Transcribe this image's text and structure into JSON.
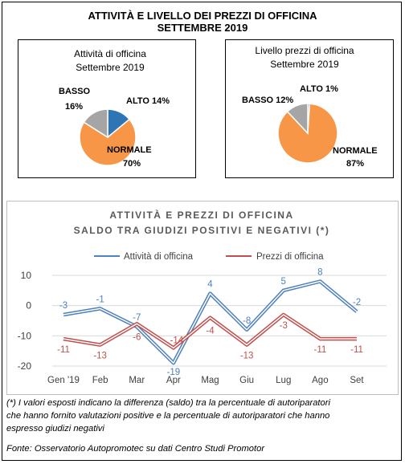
{
  "header": {
    "title_line1": "ATTIVITÀ E LIVELLO DEI PREZZI DI OFFICINA",
    "title_line2": "SETTEMBRE 2019"
  },
  "chart_data": [
    {
      "type": "pie",
      "title_line1": "Attività di officina",
      "title_line2": "Settembre 2019",
      "slices": [
        {
          "name": "ALTO",
          "label": "ALTO 14%",
          "value": 14,
          "color": "#2e75b6"
        },
        {
          "name": "NORMALE",
          "label_line1": "NORMALE",
          "label_line2": "70%",
          "value": 70,
          "color": "#f79646"
        },
        {
          "name": "BASSO",
          "label_line1": "BASSO",
          "label_line2": "16%",
          "value": 16,
          "color": "#a5a5a5"
        }
      ]
    },
    {
      "type": "pie",
      "title_line1": "Livello prezzi di officina",
      "title_line2": "Settembre 2019",
      "slices": [
        {
          "name": "ALTO",
          "label": "ALTO 1%",
          "value": 1,
          "color": "#2e75b6"
        },
        {
          "name": "NORMALE",
          "label_line1": "NORMALE",
          "label_line2": "87%",
          "value": 87,
          "color": "#f79646"
        },
        {
          "name": "BASSO",
          "label": "BASSO 12%",
          "value": 12,
          "color": "#a5a5a5"
        }
      ]
    },
    {
      "type": "line",
      "title_line1": "ATTIVITÀ E PREZZI DI OFFICINA",
      "title_line2": "SALDO TRA GIUDIZI POSITIVI E NEGATIVI (*)",
      "categories": [
        "Gen '19",
        "Feb",
        "Mar",
        "Apr",
        "Mag",
        "Giu",
        "Lug",
        "Ago",
        "Set"
      ],
      "ylim": [
        -20,
        10
      ],
      "yticks": [
        10,
        0,
        -10,
        -20
      ],
      "grid": true,
      "legend": "top",
      "series": [
        {
          "name": "Attività di officina",
          "color": "#4f81bd",
          "values": [
            -3,
            -1,
            -7,
            -19,
            4,
            -8,
            5,
            8,
            -2
          ]
        },
        {
          "name": "Prezzi di officina",
          "color": "#c0504d",
          "values": [
            -11,
            -13,
            -6,
            -14,
            -4,
            -13,
            -3,
            -11,
            -11
          ]
        }
      ]
    }
  ],
  "footnote": {
    "line1": "(*) I valori esposti indicano la differenza (saldo) tra la percentuale di autoriparatori",
    "line2": "che hanno fornito valutazioni positive e la percentuale di autoriparatori che hanno",
    "line3": "espresso giudizi negativi",
    "source": "Fonte: Osservatorio Autopromotec su dati Centro Studi Promotor"
  }
}
